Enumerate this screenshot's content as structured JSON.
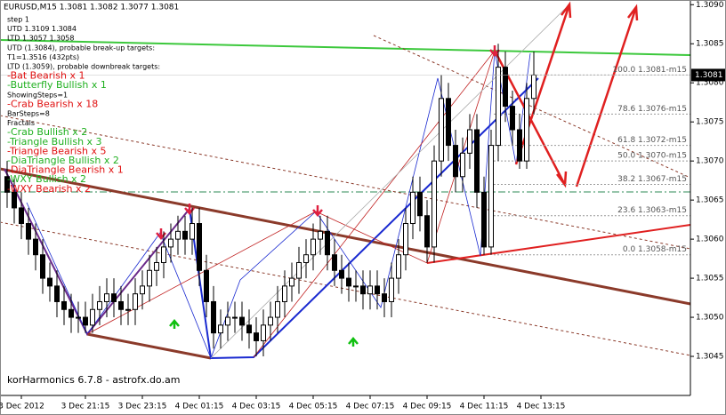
{
  "chart_data": {
    "type": "candlestick",
    "title": "EURUSD,M15  1.3081 1.3082 1.3077 1.3081",
    "footer": "korHarmonics 6.7.8 - astrofx.do.am",
    "open": [
      1.3068,
      1.3066,
      1.3064,
      1.3062,
      1.306,
      1.3058,
      1.3055,
      1.3054,
      1.3052,
      1.3051,
      1.305,
      1.305,
      1.3049,
      1.3051,
      1.3052,
      1.3053,
      1.3052,
      1.3051,
      1.3051,
      1.3053,
      1.3054,
      1.3056,
      1.3057,
      1.3059,
      1.306,
      1.3061,
      1.306,
      1.3062,
      1.3056,
      1.3052,
      1.3048,
      1.3049,
      1.305,
      1.305,
      1.3049,
      1.3048,
      1.3047,
      1.3049,
      1.305,
      1.3052,
      1.3054,
      1.3055,
      1.3057,
      1.3058,
      1.306,
      1.3061,
      1.3058,
      1.3056,
      1.3055,
      1.3054,
      1.3054,
      1.3053,
      1.3054,
      1.3053,
      1.3052,
      1.3055,
      1.3058,
      1.3062,
      1.3066,
      1.3063,
      1.3059,
      1.307,
      1.3078,
      1.3072,
      1.3068,
      1.3071,
      1.3074,
      1.3066,
      1.3059,
      1.3072,
      1.3082,
      1.3077,
      1.3074,
      1.307,
      1.3078
    ],
    "high": [
      1.307,
      1.3068,
      1.3066,
      1.3064,
      1.3062,
      1.306,
      1.3057,
      1.3056,
      1.3054,
      1.3053,
      1.3052,
      1.3052,
      1.3053,
      1.3054,
      1.3055,
      1.3055,
      1.3054,
      1.3053,
      1.3055,
      1.3056,
      1.3058,
      1.3059,
      1.3061,
      1.3062,
      1.3063,
      1.3063,
      1.3064,
      1.3064,
      1.3058,
      1.3054,
      1.3051,
      1.3052,
      1.3052,
      1.3052,
      1.3051,
      1.305,
      1.3051,
      1.3052,
      1.3054,
      1.3056,
      1.3057,
      1.3059,
      1.306,
      1.3062,
      1.3063,
      1.3063,
      1.306,
      1.3058,
      1.3057,
      1.3056,
      1.3056,
      1.3056,
      1.3056,
      1.3055,
      1.3057,
      1.306,
      1.3064,
      1.3068,
      1.3068,
      1.3065,
      1.3072,
      1.3081,
      1.308,
      1.3074,
      1.3073,
      1.3076,
      1.3076,
      1.3068,
      1.3074,
      1.3085,
      1.3084,
      1.3079,
      1.3076,
      1.308,
      1.3084
    ],
    "low": [
      1.3064,
      1.3062,
      1.306,
      1.3058,
      1.3056,
      1.3053,
      1.3052,
      1.305,
      1.3049,
      1.3048,
      1.3048,
      1.3048,
      1.3048,
      1.3049,
      1.305,
      1.305,
      1.3049,
      1.3049,
      1.3049,
      1.3051,
      1.3052,
      1.3054,
      1.3055,
      1.3057,
      1.3058,
      1.3058,
      1.3058,
      1.3054,
      1.305,
      1.3046,
      1.3046,
      1.3047,
      1.3048,
      1.3047,
      1.3046,
      1.3045,
      1.3045,
      1.3047,
      1.3048,
      1.305,
      1.3052,
      1.3053,
      1.3055,
      1.3056,
      1.3058,
      1.3056,
      1.3054,
      1.3053,
      1.3052,
      1.3052,
      1.3051,
      1.3051,
      1.3051,
      1.305,
      1.305,
      1.3053,
      1.3056,
      1.306,
      1.3061,
      1.3057,
      1.3057,
      1.3068,
      1.307,
      1.3066,
      1.3066,
      1.3069,
      1.3064,
      1.3058,
      1.3058,
      1.307,
      1.3075,
      1.3072,
      1.3069,
      1.3069,
      1.3076
    ],
    "close": [
      1.3066,
      1.3064,
      1.3062,
      1.306,
      1.3058,
      1.3055,
      1.3054,
      1.3052,
      1.3051,
      1.305,
      1.305,
      1.3049,
      1.3051,
      1.3052,
      1.3053,
      1.3052,
      1.3051,
      1.3051,
      1.3053,
      1.3054,
      1.3056,
      1.3057,
      1.3059,
      1.306,
      1.3061,
      1.306,
      1.3062,
      1.3056,
      1.3052,
      1.3048,
      1.3049,
      1.305,
      1.305,
      1.3049,
      1.3048,
      1.3047,
      1.3049,
      1.305,
      1.3052,
      1.3054,
      1.3055,
      1.3057,
      1.3058,
      1.306,
      1.3061,
      1.3058,
      1.3056,
      1.3055,
      1.3054,
      1.3054,
      1.3053,
      1.3054,
      1.3053,
      1.3052,
      1.3055,
      1.3058,
      1.3062,
      1.3066,
      1.3063,
      1.3059,
      1.307,
      1.3078,
      1.3072,
      1.3068,
      1.3071,
      1.3074,
      1.3066,
      1.3059,
      1.3072,
      1.3082,
      1.3077,
      1.3074,
      1.307,
      1.3078,
      1.3081
    ],
    "xticks": [
      {
        "value": 2,
        "label": "3 Dec 2012"
      },
      {
        "value": 11,
        "label": "3 Dec 21:15"
      },
      {
        "value": 19,
        "label": "3 Dec 23:15"
      },
      {
        "value": 27,
        "label": "4 Dec 01:15"
      },
      {
        "value": 35,
        "label": "4 Dec 03:15"
      },
      {
        "value": 43,
        "label": "4 Dec 05:15"
      },
      {
        "value": 51,
        "label": "4 Dec 07:15"
      },
      {
        "value": 59,
        "label": "4 Dec 09:15"
      },
      {
        "value": 67,
        "label": "4 Dec 11:15"
      },
      {
        "value": 75,
        "label": "4 Dec 13:15"
      }
    ],
    "ylim": [
      1.304,
      1.30906
    ],
    "yticks": [
      1.3045,
      {
        "value": 1.305,
        "label": "1.3050"
      },
      1.3055,
      {
        "value": 1.306,
        "label": "1.3060"
      },
      1.3065,
      {
        "value": 1.307,
        "label": "1.3070"
      },
      1.3075,
      {
        "value": 1.308,
        "label": "1.3080"
      },
      1.3085,
      {
        "value": 1.309,
        "label": "1.3090"
      }
    ],
    "last_price": 1.3081,
    "fib_levels": [
      {
        "value": 1.3081,
        "label": "100.0 1.3081-m15"
      },
      {
        "value": 1.3076,
        "label": "78.6 1.3076-m15"
      },
      {
        "value": 1.3072,
        "label": "61.8 1.3072-m15"
      },
      {
        "value": 1.307,
        "label": "50.0 1.3070-m15"
      },
      {
        "value": 1.3067,
        "label": "38.2 1.3067-m15"
      },
      {
        "value": 1.3063,
        "label": "23.6 1.3063-m15"
      },
      {
        "value": 1.3058,
        "label": "0.0 1.3058-m15"
      }
    ],
    "annotations": [
      {
        "text": "step 1",
        "color": "#000000"
      },
      {
        "text": "UTD 1.3109 1.3084",
        "color": "#000000"
      },
      {
        "text": "LTD 1.3057 1.3058",
        "color": "#000000"
      },
      {
        "text": "UTD (1.3084), probable break-up targets:",
        "color": "#000000"
      },
      {
        "text": "T1=1.3516 (432pts)",
        "color": "#000000"
      },
      {
        "text": "LTD (1.3059), probable downbreak targets:",
        "color": "#000000"
      },
      {
        "text": "-Bat Bearish x 1",
        "color": "#e01010"
      },
      {
        "text": "-Butterfly Bullish x 1",
        "color": "#20b020"
      },
      {
        "text": "ShowingSteps=1",
        "color": "#000000"
      },
      {
        "text": "-Crab Bearish x 18",
        "color": "#e01010"
      },
      {
        "text": "BarSteps=8",
        "color": "#000000"
      },
      {
        "text": "Fractals",
        "color": "#000000"
      },
      {
        "text": "-Crab Bullish x 2",
        "color": "#20b020"
      },
      {
        "text": "-Triangle Bullish x 3",
        "color": "#20b020"
      },
      {
        "text": "-Triangle Bearish x 5",
        "color": "#e01010"
      },
      {
        "text": "-DiaTriangle Bullish x 2",
        "color": "#20b020"
      },
      {
        "text": "-DiaTriangle Bearish x 1",
        "color": "#e01010"
      },
      {
        "text": "-WXY Bullish x 2",
        "color": "#20b020"
      },
      {
        "text": "-WXY Bearish x 2",
        "color": "#e01010"
      }
    ]
  }
}
